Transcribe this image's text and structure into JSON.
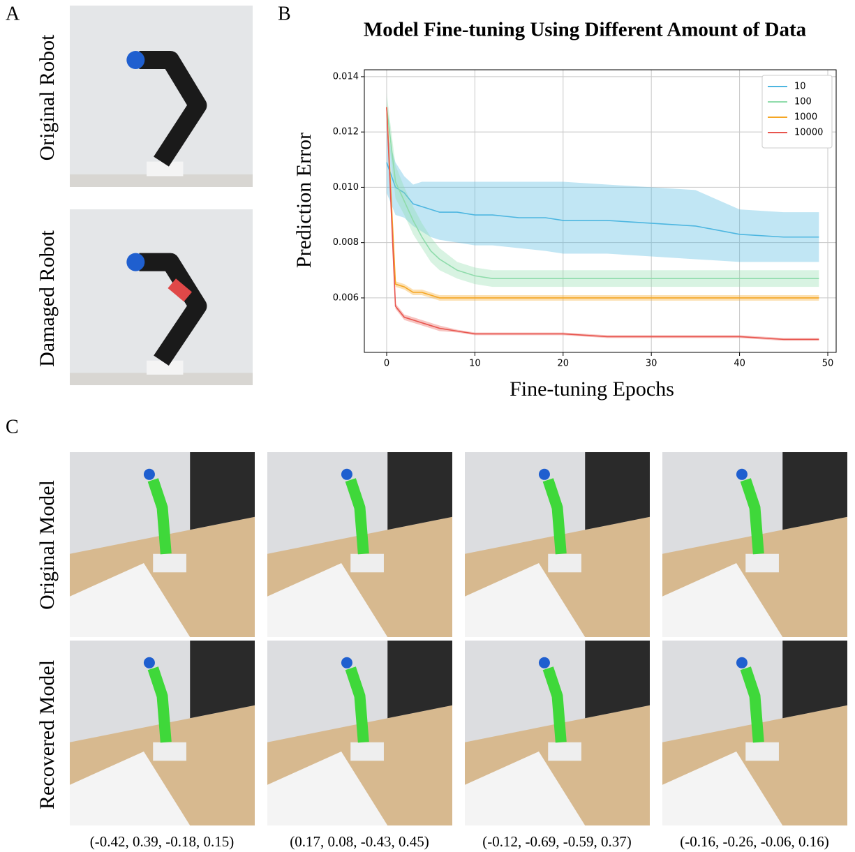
{
  "panels": {
    "a": {
      "label": "A",
      "rows": [
        "Original Robot",
        "Damaged Robot"
      ]
    },
    "b": {
      "label": "B"
    },
    "c": {
      "label": "C",
      "rows": [
        "Original Model",
        "Recovered Model"
      ],
      "captions": [
        "(-0.42, 0.39, -0.18, 0.15)",
        "(0.17, 0.08, -0.43, 0.45)",
        "(-0.12, -0.69, -0.59, 0.37)",
        "(-0.16, -0.26, -0.06, 0.16)"
      ]
    }
  },
  "chart_data": {
    "type": "line",
    "title": "Model Fine-tuning Using Different Amount of Data",
    "x_label": "Fine-tuning Epochs",
    "y_label": "Prediction Error",
    "x": [
      0,
      1,
      2,
      3,
      4,
      5,
      6,
      8,
      10,
      12,
      15,
      18,
      20,
      25,
      30,
      35,
      40,
      45,
      49
    ],
    "series": [
      {
        "name": "10",
        "color": "#4db6e0",
        "values": [
          0.0109,
          0.01,
          0.0098,
          0.0094,
          0.0093,
          0.0092,
          0.0091,
          0.0091,
          0.009,
          0.009,
          0.0089,
          0.0089,
          0.0088,
          0.0088,
          0.0087,
          0.0086,
          0.0083,
          0.0082,
          0.0082
        ],
        "upper": [
          0.012,
          0.0109,
          0.0104,
          0.0101,
          0.0102,
          0.0102,
          0.0102,
          0.0102,
          0.0102,
          0.0102,
          0.0102,
          0.0102,
          0.0102,
          0.0101,
          0.01,
          0.0099,
          0.0092,
          0.0091,
          0.0091
        ],
        "lower": [
          0.0098,
          0.009,
          0.0089,
          0.0086,
          0.0084,
          0.0082,
          0.0081,
          0.008,
          0.0079,
          0.0079,
          0.0078,
          0.0077,
          0.0076,
          0.0076,
          0.0075,
          0.0074,
          0.0073,
          0.0073,
          0.0073
        ]
      },
      {
        "name": "100",
        "color": "#8fdcab",
        "values": [
          0.0129,
          0.0102,
          0.0095,
          0.0088,
          0.0082,
          0.0077,
          0.0074,
          0.007,
          0.0068,
          0.0067,
          0.0067,
          0.0067,
          0.0067,
          0.0067,
          0.0067,
          0.0067,
          0.0067,
          0.0067,
          0.0067
        ],
        "upper": [
          0.0134,
          0.0108,
          0.01,
          0.0093,
          0.0087,
          0.0082,
          0.0078,
          0.0073,
          0.0071,
          0.007,
          0.007,
          0.007,
          0.007,
          0.007,
          0.007,
          0.007,
          0.007,
          0.007,
          0.007
        ],
        "lower": [
          0.0124,
          0.0096,
          0.009,
          0.0083,
          0.0078,
          0.0073,
          0.007,
          0.0067,
          0.0065,
          0.0064,
          0.0064,
          0.0064,
          0.0064,
          0.0064,
          0.0064,
          0.0064,
          0.0064,
          0.0064,
          0.0064
        ]
      },
      {
        "name": "1000",
        "color": "#f5a623",
        "values": [
          0.0129,
          0.0065,
          0.0064,
          0.0062,
          0.0062,
          0.0061,
          0.006,
          0.006,
          0.006,
          0.006,
          0.006,
          0.006,
          0.006,
          0.006,
          0.006,
          0.006,
          0.006,
          0.006,
          0.006
        ],
        "upper": [
          0.013,
          0.0066,
          0.0065,
          0.0063,
          0.0063,
          0.0062,
          0.0061,
          0.0061,
          0.0061,
          0.0061,
          0.0061,
          0.0061,
          0.0061,
          0.0061,
          0.0061,
          0.0061,
          0.0061,
          0.0061,
          0.0061
        ],
        "lower": [
          0.0128,
          0.0064,
          0.0063,
          0.0061,
          0.0061,
          0.006,
          0.0059,
          0.0059,
          0.0059,
          0.0059,
          0.0059,
          0.0059,
          0.0059,
          0.0059,
          0.0059,
          0.0059,
          0.0059,
          0.0059,
          0.0059
        ]
      },
      {
        "name": "10000",
        "color": "#e8554e",
        "values": [
          0.0129,
          0.0057,
          0.0053,
          0.0052,
          0.0051,
          0.005,
          0.0049,
          0.0048,
          0.0047,
          0.0047,
          0.0047,
          0.0047,
          0.0047,
          0.0046,
          0.0046,
          0.0046,
          0.0046,
          0.0045,
          0.0045
        ],
        "upper": [
          0.013,
          0.0058,
          0.0054,
          0.0053,
          0.0052,
          0.0051,
          0.005,
          0.00485,
          0.00475,
          0.00475,
          0.00475,
          0.00475,
          0.00475,
          0.00465,
          0.00465,
          0.00465,
          0.00465,
          0.00455,
          0.00455
        ],
        "lower": [
          0.0128,
          0.0056,
          0.0052,
          0.0051,
          0.005,
          0.0049,
          0.0048,
          0.00475,
          0.00465,
          0.00465,
          0.00465,
          0.00465,
          0.00465,
          0.00455,
          0.00455,
          0.00455,
          0.00455,
          0.00445,
          0.00445
        ]
      }
    ],
    "xlim": [
      -2.53,
      50.95
    ],
    "ylim": [
      0.00403,
      0.01425
    ],
    "xticks": [
      0,
      10,
      20,
      30,
      40,
      50
    ],
    "yticks": [
      0.006,
      0.008,
      {
        "value": 0.01,
        "label": "0.010"
      },
      0.012,
      0.014
    ],
    "grid": true,
    "legend": "upper right"
  }
}
